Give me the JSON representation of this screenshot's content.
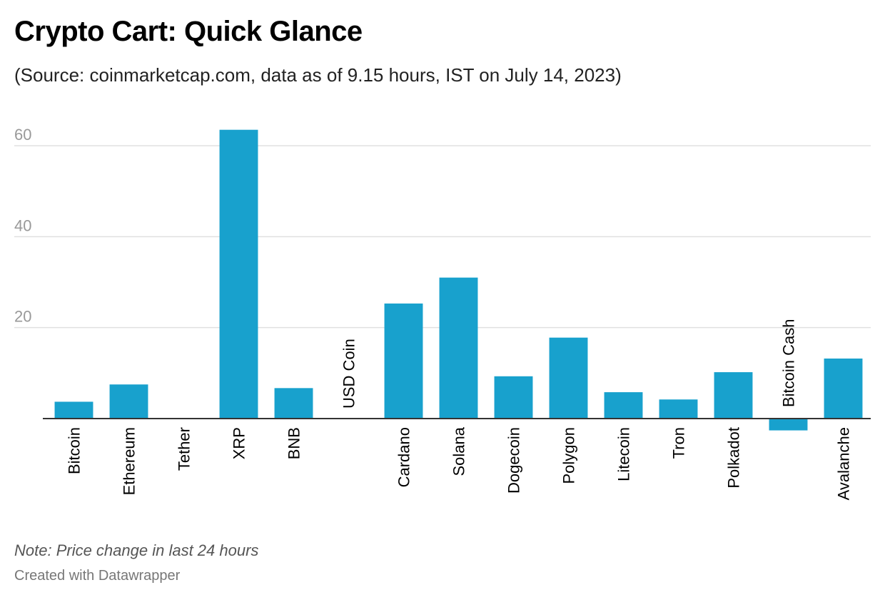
{
  "header": {
    "title": "Crypto Cart: Quick Glance",
    "subtitle": "(Source: coinmarketcap.com, data as of 9.15 hours, IST on July 14, 2023)"
  },
  "footer": {
    "note": "Note: Price change in last 24 hours",
    "credit": "Created with Datawrapper"
  },
  "colors": {
    "bar": "#18a1cd",
    "grid": "#e0e0e0",
    "axis": "#333333",
    "tick_label": "#999999"
  },
  "chart_data": {
    "type": "bar",
    "title": "Crypto Cart: Quick Glance",
    "subtitle": "(Source: coinmarketcap.com, data as of 9.15 hours, IST on July 14, 2023)",
    "xlabel": "",
    "ylabel": "",
    "ylim": [
      -3,
      66
    ],
    "yticks": [
      20,
      40,
      60
    ],
    "grid": true,
    "categories": [
      "Bitcoin",
      "Ethereum",
      "Tether",
      "XRP",
      "BNB",
      "USD Coin",
      "Cardano",
      "Solana",
      "Dogecoin",
      "Polygon",
      "Litecoin",
      "Tron",
      "Polkadot",
      "Bitcoin Cash",
      "Avalanche"
    ],
    "values": [
      3.7,
      7.5,
      0,
      63.5,
      6.7,
      0,
      25.3,
      31.0,
      9.3,
      17.8,
      5.8,
      4.2,
      10.2,
      -2.6,
      13.2
    ]
  }
}
